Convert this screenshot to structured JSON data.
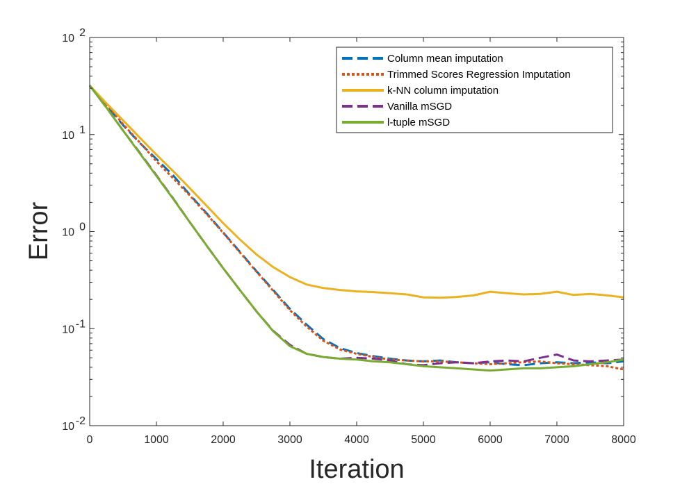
{
  "chart_data": {
    "type": "line",
    "xlabel": "Iteration",
    "ylabel": "Error",
    "xlim": [
      0,
      8000
    ],
    "ylim": [
      0.01,
      100
    ],
    "yscale": "log",
    "grid": false,
    "legend_position": "top-right",
    "x_ticks": [
      0,
      1000,
      2000,
      3000,
      4000,
      5000,
      6000,
      7000,
      8000
    ],
    "x_tick_labels": [
      "0",
      "1000",
      "2000",
      "3000",
      "4000",
      "5000",
      "6000",
      "7000",
      "8000"
    ],
    "y_ticks": [
      0.01,
      0.1,
      1,
      10,
      100
    ],
    "y_tick_labels": [
      {
        "base": "10",
        "exp": "-2"
      },
      {
        "base": "10",
        "exp": "-1"
      },
      {
        "base": "10",
        "exp": "0"
      },
      {
        "base": "10",
        "exp": "1"
      },
      {
        "base": "10",
        "exp": "2"
      }
    ],
    "x": [
      0,
      250,
      500,
      750,
      1000,
      1250,
      1500,
      1750,
      2000,
      2250,
      2500,
      2750,
      3000,
      3250,
      3500,
      3750,
      4000,
      4250,
      4500,
      4750,
      5000,
      5250,
      5500,
      5750,
      6000,
      6250,
      6500,
      6750,
      7000,
      7250,
      7500,
      7750,
      8000
    ],
    "series": [
      {
        "name": "Column mean imputation",
        "color": "#0072BD",
        "style": "dashed",
        "values": [
          32,
          20,
          12.5,
          8.2,
          5.6,
          3.8,
          2.4,
          1.55,
          0.98,
          0.62,
          0.39,
          0.25,
          0.16,
          0.11,
          0.078,
          0.063,
          0.056,
          0.052,
          0.049,
          0.047,
          0.046,
          0.047,
          0.045,
          0.044,
          0.045,
          0.043,
          0.042,
          0.044,
          0.045,
          0.044,
          0.045,
          0.044,
          0.046
        ]
      },
      {
        "name": "Trimmed Scores Regression Imputation",
        "color": "#D95319",
        "style": "dotted",
        "values": [
          32,
          20.5,
          12.8,
          8.3,
          5.3,
          3.55,
          2.35,
          1.52,
          0.97,
          0.61,
          0.385,
          0.245,
          0.155,
          0.105,
          0.075,
          0.061,
          0.055,
          0.051,
          0.048,
          0.047,
          0.046,
          0.046,
          0.045,
          0.044,
          0.043,
          0.044,
          0.045,
          0.046,
          0.044,
          0.043,
          0.042,
          0.041,
          0.038
        ]
      },
      {
        "name": "k-NN column imputation",
        "color": "#EDB120",
        "style": "solid",
        "values": [
          32,
          21,
          14,
          9.3,
          6.2,
          4.2,
          2.8,
          1.85,
          1.22,
          0.83,
          0.58,
          0.43,
          0.34,
          0.285,
          0.262,
          0.25,
          0.242,
          0.238,
          0.232,
          0.225,
          0.21,
          0.208,
          0.212,
          0.22,
          0.24,
          0.232,
          0.225,
          0.228,
          0.24,
          0.222,
          0.228,
          0.22,
          0.21
        ]
      },
      {
        "name": "Vanilla mSGD",
        "color": "#7E2F8E",
        "style": "dashed",
        "values": [
          32,
          19,
          11,
          6.5,
          3.8,
          2.2,
          1.25,
          0.72,
          0.42,
          0.25,
          0.15,
          0.095,
          0.068,
          0.055,
          0.051,
          0.049,
          0.05,
          0.049,
          0.047,
          0.043,
          0.042,
          0.044,
          0.045,
          0.044,
          0.046,
          0.047,
          0.046,
          0.05,
          0.054,
          0.047,
          0.046,
          0.047,
          0.048
        ]
      },
      {
        "name": "l-tuple mSGD",
        "color": "#77AC30",
        "style": "solid",
        "values": [
          32,
          19,
          11,
          6.4,
          3.75,
          2.18,
          1.25,
          0.72,
          0.42,
          0.25,
          0.15,
          0.094,
          0.066,
          0.055,
          0.051,
          0.049,
          0.048,
          0.046,
          0.045,
          0.043,
          0.041,
          0.04,
          0.039,
          0.038,
          0.037,
          0.038,
          0.039,
          0.039,
          0.04,
          0.041,
          0.043,
          0.045,
          0.048
        ]
      }
    ]
  }
}
